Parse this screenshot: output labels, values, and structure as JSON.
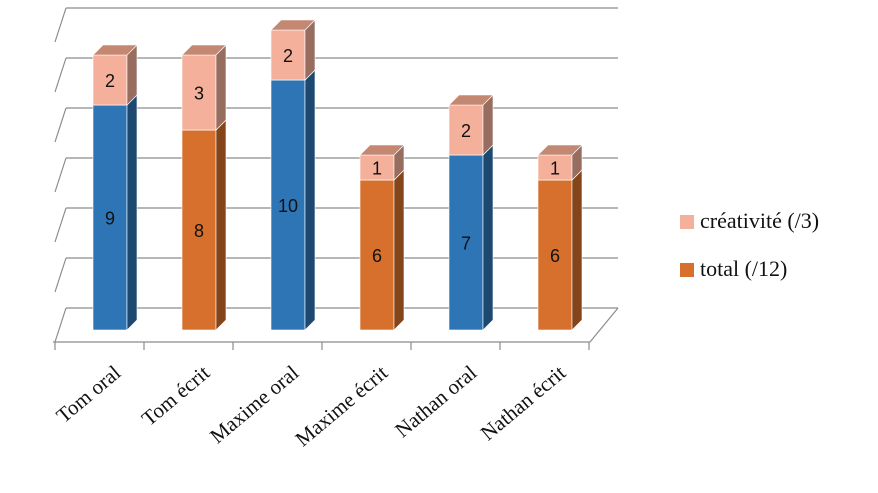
{
  "chart_data": {
    "type": "bar",
    "stacked": true,
    "three_d": true,
    "categories": [
      "Tom oral",
      "Tom écrit",
      "Maxime oral",
      "Maxime écrit",
      "Nathan oral",
      "Nathan écrit"
    ],
    "series": [
      {
        "name": "total (/12)",
        "values": [
          9,
          8,
          10,
          6,
          7,
          6
        ],
        "bar_colors": [
          "#2e75b6",
          "#d6702c",
          "#2e75b6",
          "#d6702c",
          "#2e75b6",
          "#d6702c"
        ]
      },
      {
        "name": "créativité (/3)",
        "values": [
          2,
          3,
          2,
          1,
          2,
          1
        ],
        "color": "#f4b09a"
      }
    ],
    "ylim": [
      0,
      12
    ],
    "grid": true,
    "legend": "right",
    "legend_entries": [
      {
        "label": "créativité (/3)",
        "color": "#f4b09a"
      },
      {
        "label": "total (/12)",
        "color": "#d6702c"
      }
    ],
    "title": "",
    "xlabel": "",
    "ylabel": ""
  }
}
